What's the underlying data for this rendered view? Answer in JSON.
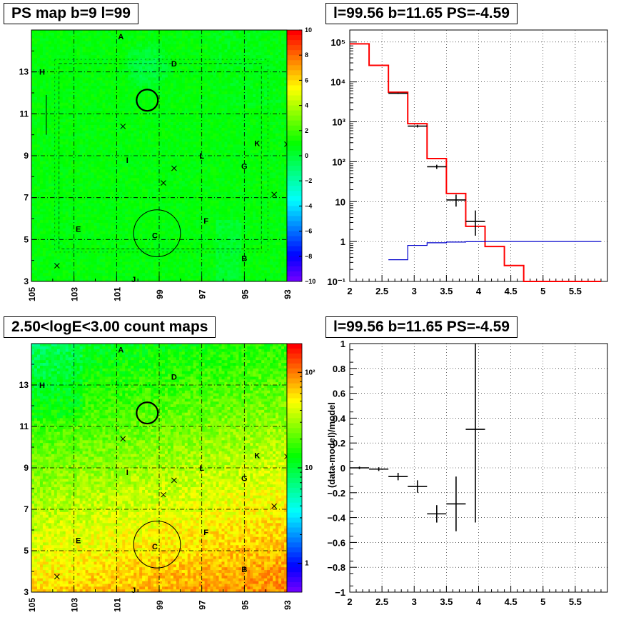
{
  "chart_data": [
    {
      "type": "heatmap",
      "title": "PS map b=9 l=99",
      "x_ticks": [
        "105",
        "103",
        "101",
        "99",
        "97",
        "95",
        "93"
      ],
      "y_ticks": [
        "3",
        "5",
        "7",
        "9",
        "11",
        "13"
      ],
      "xlim": [
        105,
        93
      ],
      "ylim": [
        3,
        15
      ],
      "color_scale": "linear",
      "colorbar_range": [
        -10,
        10
      ],
      "colorbar_ticks": [
        "10",
        "8",
        "6",
        "4",
        "2",
        "0",
        "−2",
        "−4",
        "−6",
        "−8",
        "−10"
      ],
      "grid": true,
      "annotations": [
        {
          "label": "A",
          "l": 100.8,
          "b": 14.7
        },
        {
          "label": "D",
          "l": 98.3,
          "b": 13.4
        },
        {
          "label": "H",
          "l": 104.5,
          "b": 13.0
        },
        {
          "label": "K",
          "l": 94.4,
          "b": 9.6
        },
        {
          "label": "L",
          "l": 97.0,
          "b": 9.0
        },
        {
          "label": "I",
          "l": 100.5,
          "b": 8.8
        },
        {
          "label": "G",
          "l": 95.0,
          "b": 8.5
        },
        {
          "label": "F",
          "l": 96.8,
          "b": 5.9
        },
        {
          "label": "E",
          "l": 102.8,
          "b": 5.5
        },
        {
          "label": "C",
          "l": 99.2,
          "b": 5.2
        },
        {
          "label": "B",
          "l": 95.0,
          "b": 4.1
        },
        {
          "label": "J",
          "l": 100.2,
          "b": 3.1
        }
      ],
      "markers": [
        {
          "l": 100.7,
          "b": 10.4
        },
        {
          "l": 98.3,
          "b": 8.4
        },
        {
          "l": 98.8,
          "b": 7.7
        },
        {
          "l": 93.6,
          "b": 7.15
        },
        {
          "l": 93.0,
          "b": 9.55
        },
        {
          "l": 103.8,
          "b": 3.75
        }
      ],
      "circles": [
        {
          "l": 99.56,
          "b": 11.65,
          "r": 0.5
        },
        {
          "l": 99.1,
          "b": 5.3,
          "r": 1.1
        }
      ]
    },
    {
      "type": "line",
      "title": "l=99.56 b=11.65 PS=-4.59",
      "y_scale": "log",
      "xlim": [
        2,
        6
      ],
      "ylim": [
        0.1,
        200000
      ],
      "x_ticks": [
        "2",
        "2.5",
        "3",
        "3.5",
        "4",
        "4.5",
        "5",
        "5.5"
      ],
      "y_ticks": [
        "10⁻¹",
        "1",
        "10",
        "10²",
        "10³",
        "10⁴",
        "10⁵"
      ],
      "grid": true,
      "series": [
        {
          "color": "#ff0000",
          "style": "step",
          "bins": [
            2.0,
            2.3,
            2.6,
            2.9,
            3.2,
            3.5,
            3.8,
            4.1,
            4.4,
            4.7,
            5.0,
            5.3,
            5.6,
            5.9
          ],
          "values": [
            90000,
            26000,
            5500,
            900,
            120,
            16,
            2.4,
            0.75,
            0.25,
            0.1,
            0.1,
            0.1,
            0.1
          ]
        },
        {
          "color": "#0000cc",
          "style": "step",
          "bins": [
            2.6,
            2.9,
            3.2,
            3.5,
            3.8,
            4.1,
            4.4,
            4.7,
            5.0,
            5.3,
            5.6,
            5.9
          ],
          "values": [
            0.35,
            0.8,
            0.93,
            0.97,
            0.99,
            1.0,
            1.0,
            1.0,
            1.0,
            1.0,
            1.0
          ]
        },
        {
          "color": "#000000",
          "style": "errorbar",
          "points": [
            {
              "x": 2.75,
              "y": 5200,
              "xerr": 0.15,
              "ylo": 5000,
              "yhi": 5400
            },
            {
              "x": 3.05,
              "y": 780,
              "xerr": 0.15,
              "ylo": 720,
              "yhi": 840
            },
            {
              "x": 3.35,
              "y": 75,
              "xerr": 0.15,
              "ylo": 66,
              "yhi": 84
            },
            {
              "x": 3.65,
              "y": 11,
              "xerr": 0.15,
              "ylo": 7.5,
              "yhi": 15
            },
            {
              "x": 3.95,
              "y": 3.2,
              "xerr": 0.15,
              "ylo": 1.4,
              "yhi": 6.0
            }
          ]
        }
      ]
    },
    {
      "type": "heatmap",
      "title": "2.50<logE<3.00 count maps",
      "x_ticks": [
        "105",
        "103",
        "101",
        "99",
        "97",
        "95",
        "93"
      ],
      "y_ticks": [
        "3",
        "5",
        "7",
        "9",
        "11",
        "13"
      ],
      "xlim": [
        105,
        93
      ],
      "ylim": [
        3,
        15
      ],
      "color_scale": "log",
      "colorbar_ticks": [
        {
          "label": "10²",
          "value": 100
        },
        {
          "label": "10",
          "value": 10
        },
        {
          "label": "1",
          "value": 1
        }
      ],
      "grid": true
    },
    {
      "type": "scatter",
      "title": "l=99.56 b=11.65 PS=-4.59",
      "ylabel": "(data-model)/model",
      "xlim": [
        2,
        6
      ],
      "ylim": [
        -1,
        1
      ],
      "x_ticks": [
        "2",
        "2.5",
        "3",
        "3.5",
        "4",
        "4.5",
        "5",
        "5.5"
      ],
      "y_ticks": [
        "−1",
        "−0.8",
        "−0.6",
        "−0.4",
        "−0.2",
        "0",
        "0.2",
        "0.4",
        "0.6",
        "0.8",
        "1"
      ],
      "grid": true,
      "points": [
        {
          "x": 2.15,
          "y": 0.0,
          "xerr": 0.15,
          "ylo": -0.01,
          "yhi": 0.01
        },
        {
          "x": 2.45,
          "y": -0.01,
          "xerr": 0.15,
          "ylo": -0.025,
          "yhi": 0.005
        },
        {
          "x": 2.75,
          "y": -0.07,
          "xerr": 0.15,
          "ylo": -0.1,
          "yhi": -0.04
        },
        {
          "x": 3.05,
          "y": -0.15,
          "xerr": 0.15,
          "ylo": -0.2,
          "yhi": -0.1
        },
        {
          "x": 3.35,
          "y": -0.37,
          "xerr": 0.15,
          "ylo": -0.44,
          "yhi": -0.3
        },
        {
          "x": 3.65,
          "y": -0.29,
          "xerr": 0.15,
          "ylo": -0.51,
          "yhi": -0.07
        },
        {
          "x": 3.95,
          "y": 0.31,
          "xerr": 0.15,
          "ylo": -0.44,
          "yhi": 1.0
        }
      ]
    }
  ]
}
